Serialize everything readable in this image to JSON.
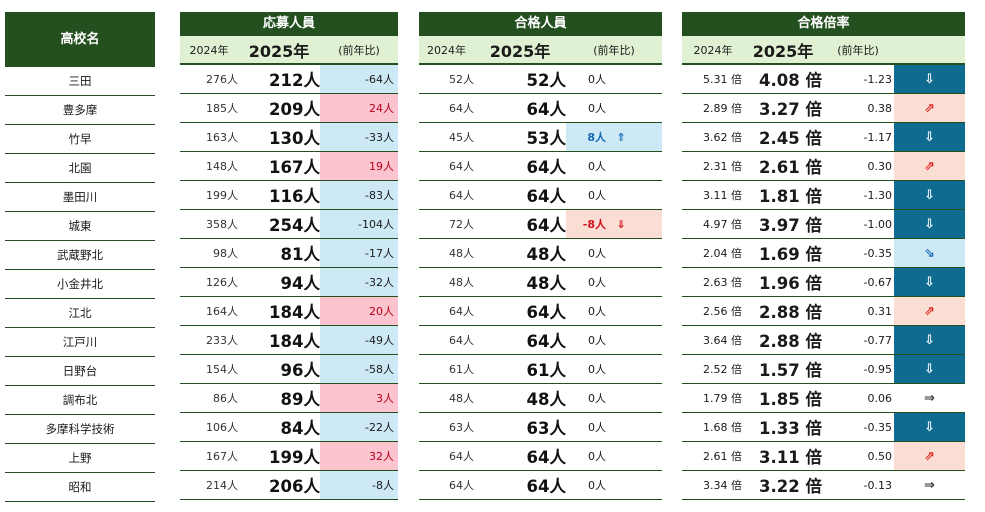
{
  "headers": {
    "school": "高校名",
    "applicants": "応募人員",
    "passers": "合格人員",
    "ratio": "合格倍率",
    "year_prev": "2024年",
    "year_cur": "2025年",
    "change": "(前年比)"
  },
  "rows": [
    {
      "school": "三田",
      "app_prev": "276人",
      "app_cur": "212人",
      "app_diff": "-64人",
      "app_dir": "down",
      "pass_prev": "52人",
      "pass_cur": "52人",
      "pass_diff": "0人",
      "pass_dir": "flat",
      "pass_arrow": "",
      "r_prev": "5.31 倍",
      "r_cur": "4.08 倍",
      "r_diff": "-1.23",
      "r_dir": "down",
      "r_arrow": "⇩"
    },
    {
      "school": "豊多摩",
      "app_prev": "185人",
      "app_cur": "209人",
      "app_diff": "24人",
      "app_dir": "up",
      "pass_prev": "64人",
      "pass_cur": "64人",
      "pass_diff": "0人",
      "pass_dir": "flat",
      "pass_arrow": "",
      "r_prev": "2.89 倍",
      "r_cur": "3.27 倍",
      "r_diff": "0.38",
      "r_dir": "up",
      "r_arrow": "⇗"
    },
    {
      "school": "竹早",
      "app_prev": "163人",
      "app_cur": "130人",
      "app_diff": "-33人",
      "app_dir": "down",
      "pass_prev": "45人",
      "pass_cur": "53人",
      "pass_diff": "8人",
      "pass_dir": "up",
      "pass_arrow": "⇑",
      "r_prev": "3.62 倍",
      "r_cur": "2.45 倍",
      "r_diff": "-1.17",
      "r_dir": "down",
      "r_arrow": "⇩"
    },
    {
      "school": "北園",
      "app_prev": "148人",
      "app_cur": "167人",
      "app_diff": "19人",
      "app_dir": "up",
      "pass_prev": "64人",
      "pass_cur": "64人",
      "pass_diff": "0人",
      "pass_dir": "flat",
      "pass_arrow": "",
      "r_prev": "2.31 倍",
      "r_cur": "2.61 倍",
      "r_diff": "0.30",
      "r_dir": "up",
      "r_arrow": "⇗"
    },
    {
      "school": "墨田川",
      "app_prev": "199人",
      "app_cur": "116人",
      "app_diff": "-83人",
      "app_dir": "down",
      "pass_prev": "64人",
      "pass_cur": "64人",
      "pass_diff": "0人",
      "pass_dir": "flat",
      "pass_arrow": "",
      "r_prev": "3.11 倍",
      "r_cur": "1.81 倍",
      "r_diff": "-1.30",
      "r_dir": "down",
      "r_arrow": "⇩"
    },
    {
      "school": "城東",
      "app_prev": "358人",
      "app_cur": "254人",
      "app_diff": "-104人",
      "app_dir": "down",
      "pass_prev": "72人",
      "pass_cur": "64人",
      "pass_diff": "-8人",
      "pass_dir": "down",
      "pass_arrow": "⇓",
      "r_prev": "4.97 倍",
      "r_cur": "3.97 倍",
      "r_diff": "-1.00",
      "r_dir": "down",
      "r_arrow": "⇩"
    },
    {
      "school": "武蔵野北",
      "app_prev": "98人",
      "app_cur": "81人",
      "app_diff": "-17人",
      "app_dir": "down",
      "pass_prev": "48人",
      "pass_cur": "48人",
      "pass_diff": "0人",
      "pass_dir": "flat",
      "pass_arrow": "",
      "r_prev": "2.04 倍",
      "r_cur": "1.69 倍",
      "r_diff": "-0.35",
      "r_dir": "slight-down",
      "r_arrow": "⇘"
    },
    {
      "school": "小金井北",
      "app_prev": "126人",
      "app_cur": "94人",
      "app_diff": "-32人",
      "app_dir": "down",
      "pass_prev": "48人",
      "pass_cur": "48人",
      "pass_diff": "0人",
      "pass_dir": "flat",
      "pass_arrow": "",
      "r_prev": "2.63 倍",
      "r_cur": "1.96 倍",
      "r_diff": "-0.67",
      "r_dir": "down",
      "r_arrow": "⇩"
    },
    {
      "school": "江北",
      "app_prev": "164人",
      "app_cur": "184人",
      "app_diff": "20人",
      "app_dir": "up",
      "pass_prev": "64人",
      "pass_cur": "64人",
      "pass_diff": "0人",
      "pass_dir": "flat",
      "pass_arrow": "",
      "r_prev": "2.56 倍",
      "r_cur": "2.88 倍",
      "r_diff": "0.31",
      "r_dir": "up",
      "r_arrow": "⇗"
    },
    {
      "school": "江戸川",
      "app_prev": "233人",
      "app_cur": "184人",
      "app_diff": "-49人",
      "app_dir": "down",
      "pass_prev": "64人",
      "pass_cur": "64人",
      "pass_diff": "0人",
      "pass_dir": "flat",
      "pass_arrow": "",
      "r_prev": "3.64 倍",
      "r_cur": "2.88 倍",
      "r_diff": "-0.77",
      "r_dir": "down",
      "r_arrow": "⇩"
    },
    {
      "school": "日野台",
      "app_prev": "154人",
      "app_cur": "96人",
      "app_diff": "-58人",
      "app_dir": "down",
      "pass_prev": "61人",
      "pass_cur": "61人",
      "pass_diff": "0人",
      "pass_dir": "flat",
      "pass_arrow": "",
      "r_prev": "2.52 倍",
      "r_cur": "1.57 倍",
      "r_diff": "-0.95",
      "r_dir": "down",
      "r_arrow": "⇩"
    },
    {
      "school": "調布北",
      "app_prev": "86人",
      "app_cur": "89人",
      "app_diff": "3人",
      "app_dir": "up",
      "pass_prev": "48人",
      "pass_cur": "48人",
      "pass_diff": "0人",
      "pass_dir": "flat",
      "pass_arrow": "",
      "r_prev": "1.79 倍",
      "r_cur": "1.85 倍",
      "r_diff": "0.06",
      "r_dir": "flat",
      "r_arrow": "⇒"
    },
    {
      "school": "多摩科学技術",
      "app_prev": "106人",
      "app_cur": "84人",
      "app_diff": "-22人",
      "app_dir": "down",
      "pass_prev": "63人",
      "pass_cur": "63人",
      "pass_diff": "0人",
      "pass_dir": "flat",
      "pass_arrow": "",
      "r_prev": "1.68 倍",
      "r_cur": "1.33 倍",
      "r_diff": "-0.35",
      "r_dir": "down",
      "r_arrow": "⇩"
    },
    {
      "school": "上野",
      "app_prev": "167人",
      "app_cur": "199人",
      "app_diff": "32人",
      "app_dir": "up",
      "pass_prev": "64人",
      "pass_cur": "64人",
      "pass_diff": "0人",
      "pass_dir": "flat",
      "pass_arrow": "",
      "r_prev": "2.61 倍",
      "r_cur": "3.11 倍",
      "r_diff": "0.50",
      "r_dir": "up",
      "r_arrow": "⇗"
    },
    {
      "school": "昭和",
      "app_prev": "214人",
      "app_cur": "206人",
      "app_diff": "-8人",
      "app_dir": "down",
      "pass_prev": "64人",
      "pass_cur": "64人",
      "pass_diff": "0人",
      "pass_dir": "flat",
      "pass_arrow": "",
      "r_prev": "3.34 倍",
      "r_cur": "3.22 倍",
      "r_diff": "-0.13",
      "r_dir": "flat",
      "r_arrow": "⇒"
    }
  ],
  "colors": {
    "header_green": "#24501f",
    "subheader_green": "#e0f0d3",
    "decrease_blue": "#cde9f6",
    "increase_pink": "#fbc4ce",
    "increase_salmon": "#fbded3",
    "strong_decrease_teal": "#0f6b8f"
  }
}
